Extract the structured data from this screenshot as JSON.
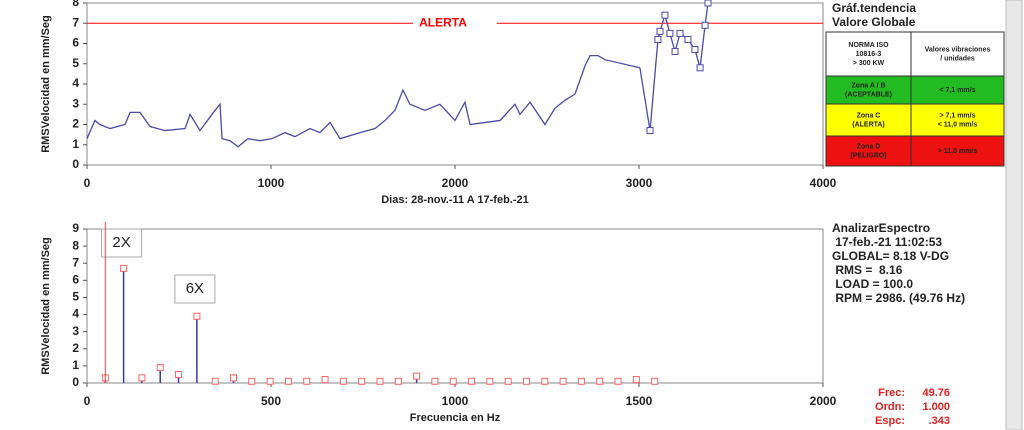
{
  "chart_data": [
    {
      "type": "line",
      "ylabel": "RMSVelocidad en  mm/Seg",
      "xlabel": "Dias:  28-nov.-11 A  17-feb.-21",
      "xlim": [
        0,
        4000
      ],
      "xticks": [
        0,
        1000,
        2000,
        3000,
        4000
      ],
      "ylim": [
        0,
        8
      ],
      "yticks": [
        0,
        1,
        2,
        3,
        4,
        5,
        6,
        7,
        8
      ],
      "reference_lines": [
        {
          "value": 7,
          "label": "ALERTA",
          "color": "#ff0000"
        }
      ],
      "series": [
        {
          "color": "#4a4aa8",
          "marker": "none",
          "x": [
            0,
            43,
            70,
            125,
            207,
            234,
            288,
            342,
            424,
            533,
            560,
            614,
            696,
            723,
            734,
            777,
            821,
            875,
            940,
            1005,
            1076,
            1130,
            1212,
            1266,
            1321,
            1375,
            1484,
            1565,
            1620,
            1674,
            1717,
            1755,
            1837,
            1918,
            2000,
            2054,
            2082,
            2245,
            2326,
            2353,
            2408,
            2489,
            2543,
            2598,
            2652,
            2707,
            2734,
            2777,
            2815,
            3005
          ],
          "values": [
            1.3,
            2.2,
            2.0,
            1.8,
            2.0,
            2.6,
            2.6,
            1.9,
            1.7,
            1.8,
            2.5,
            1.7,
            2.7,
            3.0,
            1.3,
            1.2,
            0.9,
            1.3,
            1.2,
            1.3,
            1.6,
            1.4,
            1.8,
            1.6,
            2.1,
            1.3,
            1.6,
            1.8,
            2.2,
            2.7,
            3.7,
            3.0,
            2.7,
            3.0,
            2.2,
            3.1,
            2.0,
            2.2,
            3.0,
            2.5,
            3.1,
            2.0,
            2.8,
            3.2,
            3.5,
            4.9,
            5.4,
            5.4,
            5.2,
            4.8
          ]
        },
        {
          "color": "#4a4aa8",
          "marker": "square",
          "x": [
            3060,
            3103,
            3114,
            3141,
            3168,
            3196,
            3223,
            3266,
            3304,
            3332,
            3359,
            3375
          ],
          "values": [
            1.7,
            6.2,
            6.6,
            7.4,
            6.5,
            5.6,
            6.5,
            6.2,
            5.7,
            4.8,
            6.9,
            8.0
          ]
        }
      ]
    },
    {
      "type": "spectrum",
      "ylabel": "RMSVelocidad en  mm/Seg",
      "xlabel": "Frecuencia en Hz",
      "xlim": [
        0,
        2000
      ],
      "xticks": [
        0,
        500,
        1000,
        1500,
        2000
      ],
      "ylim": [
        0,
        9
      ],
      "yticks": [
        0,
        1,
        2,
        3,
        4,
        5,
        6,
        7,
        8,
        9
      ],
      "color": "#3a3aa0",
      "marker_color": "#ff6060",
      "annotations": [
        {
          "text": "2X",
          "index": 1
        },
        {
          "text": "6X",
          "index": 5
        }
      ],
      "x": [
        49.8,
        99.5,
        149.3,
        199.0,
        248.8,
        298.6,
        348.3,
        398.1,
        447.8,
        497.6,
        547.4,
        597.1,
        646.9,
        696.6,
        746.4,
        796.2,
        845.9,
        895.7,
        945.4,
        995.2,
        1045.0,
        1094.7,
        1144.5,
        1194.2,
        1244.0,
        1293.8,
        1343.5,
        1393.3,
        1443.0,
        1492.8,
        1542.6
      ],
      "values": [
        0.3,
        6.7,
        0.3,
        0.9,
        0.5,
        3.9,
        0.1,
        0.3,
        0.1,
        0.1,
        0.1,
        0.1,
        0.2,
        0.1,
        0.1,
        0.1,
        0.1,
        0.4,
        0.1,
        0.1,
        0.1,
        0.1,
        0.1,
        0.1,
        0.1,
        0.1,
        0.1,
        0.1,
        0.1,
        0.2,
        0.1
      ]
    }
  ],
  "trend_panel": {
    "title": "Gráf.tendencia",
    "subtitle": "Valore Globale",
    "table": {
      "header": [
        [
          "NORMA ISO",
          "10816-3",
          "> 300 KW"
        ],
        [
          "Valores vibraciones",
          "/ unidades"
        ]
      ],
      "rows": [
        {
          "color": "#22bb22",
          "cells": [
            [
              "Zona A / B",
              "(ACEPTABLE)"
            ],
            [
              "< 7,1 mm/s"
            ]
          ]
        },
        {
          "color": "#ffff00",
          "cells": [
            [
              "Zona C",
              "(ALERTA)"
            ],
            [
              "> 7,1 mm/s",
              "< 11,0 mm/s"
            ]
          ]
        },
        {
          "color": "#ee1111",
          "cells": [
            [
              "Zona D",
              "(PELIGRO)"
            ],
            [
              "> 11,0 mm/s"
            ]
          ]
        }
      ]
    }
  },
  "spectrum_panel": {
    "lines": [
      "AnalizarEspectro",
      " 17-feb.-21 11:02:53",
      "GLOBAL= 8.18 V-DG",
      " RMS =  8.16",
      " LOAD = 100.0",
      " RPM = 2986. (49.76 Hz)"
    ]
  },
  "cursor_readout": [
    {
      "label": "Frec:",
      "value": "49.76"
    },
    {
      "label": "Ordn:",
      "value": "1.000"
    },
    {
      "label": "Espc:",
      "value": ".343"
    }
  ]
}
